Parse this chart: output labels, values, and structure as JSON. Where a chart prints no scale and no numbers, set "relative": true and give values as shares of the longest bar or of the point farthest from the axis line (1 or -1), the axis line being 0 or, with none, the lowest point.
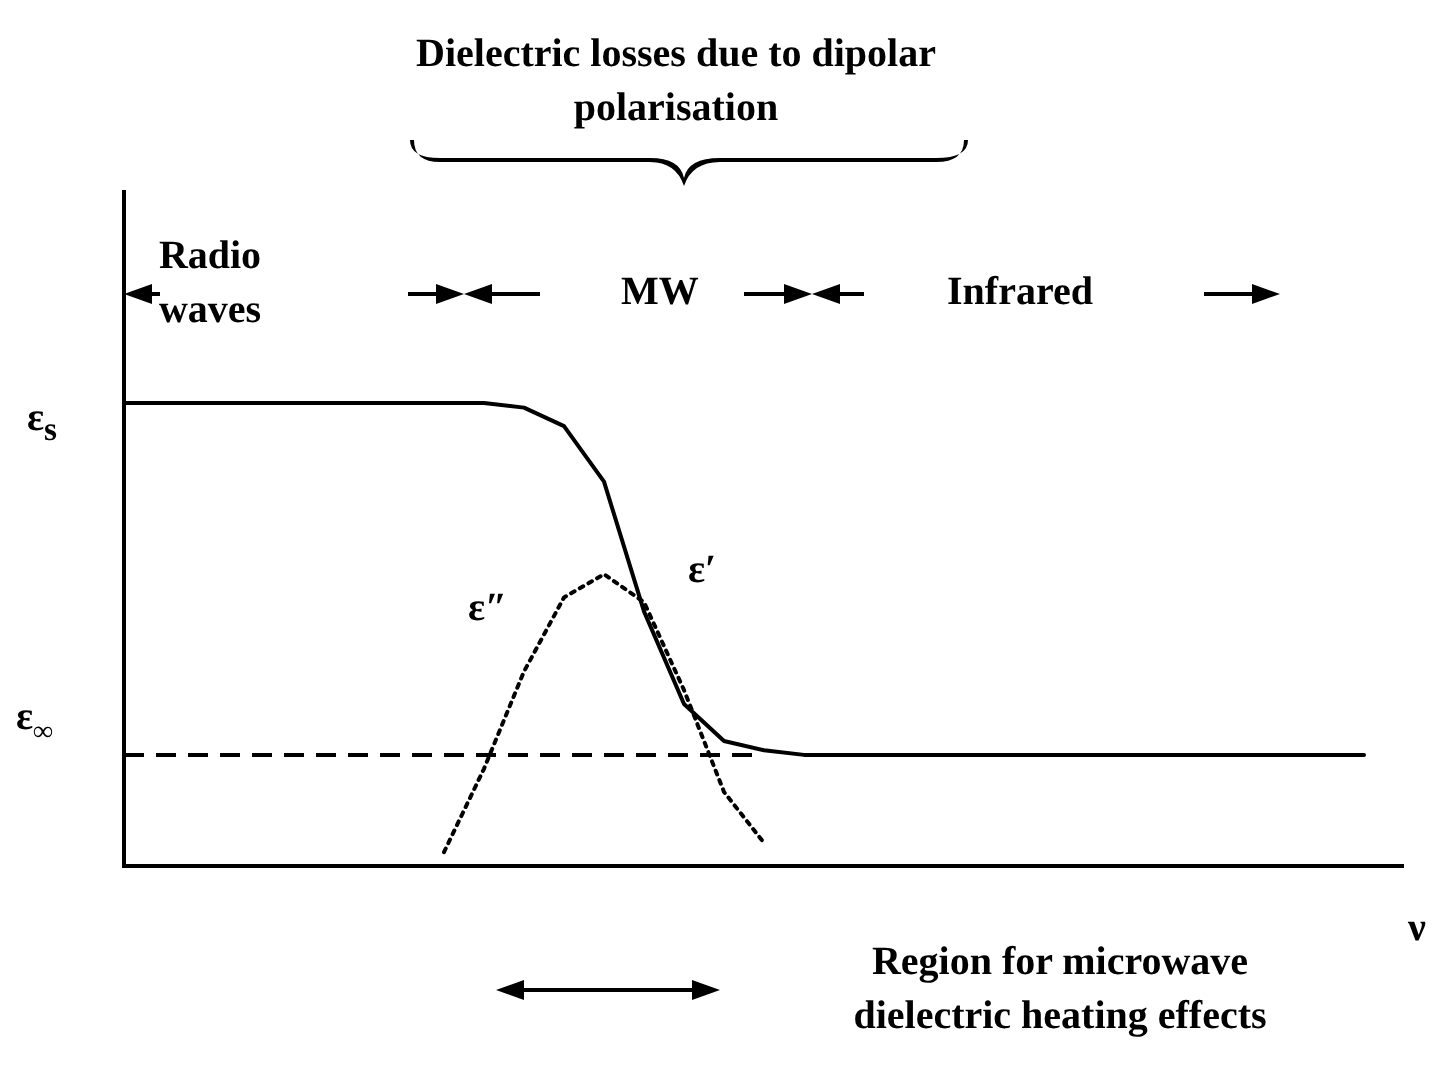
{
  "chart_data": {
    "type": "line",
    "relative": true,
    "xlabel": "ν",
    "marker": "none",
    "legend": false,
    "categories": [
      null,
      null,
      null,
      null,
      null,
      null,
      null,
      null,
      null,
      null,
      null,
      null,
      null,
      null,
      null,
      null,
      null,
      null,
      null,
      null,
      null,
      null,
      null,
      null,
      null,
      null,
      null,
      null,
      null,
      null,
      null,
      null,
      null
    ],
    "series": [
      {
        "name": "ε′",
        "color": "#000000",
        "line_style": "solid",
        "values": [
          1,
          1,
          1,
          1,
          1,
          1,
          1,
          1,
          1,
          1,
          0.99,
          0.95,
          0.83,
          0.55,
          0.35,
          0.27,
          0.25,
          0.24,
          0.24,
          0.24,
          0.24,
          0.24,
          0.24,
          0.24,
          0.24,
          0.24,
          0.24,
          0.24,
          0.24,
          0.24,
          0.24,
          0.24,
          null
        ]
      },
      {
        "name": "ε″",
        "color": "#000000",
        "line_style": "dotted",
        "values": [
          null,
          null,
          null,
          null,
          null,
          null,
          null,
          null,
          0.03,
          0.21,
          0.42,
          0.58,
          0.63,
          0.57,
          0.38,
          0.16,
          0.05,
          null,
          null,
          null,
          null,
          null,
          null,
          null,
          null,
          null,
          null,
          null,
          null,
          null,
          null,
          null,
          null
        ]
      }
    ],
    "ref_lines": [
      {
        "axis": "y",
        "value": 0.24,
        "label": "ε$_{∞}$",
        "color": "#000000",
        "line_style": "dashed"
      }
    ],
    "annotations": [
      "Dielectric losses due to dipolar polarisation",
      "Radio waves",
      "MW",
      "Infrared",
      "Region for microwave dielectric heating effects",
      "ε$_{s}$"
    ]
  }
}
